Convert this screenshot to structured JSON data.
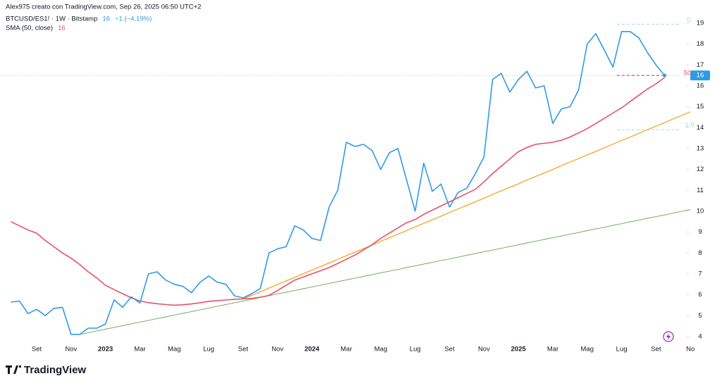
{
  "chart_data": {
    "type": "line",
    "header": "Alex975 creato con TradingView.com, Sep 26, 2025 06:50 UTC+2",
    "brand": "TradingView",
    "price_tag": "16",
    "sma_label": "50",
    "categories": [
      null,
      null,
      null,
      "Set",
      null,
      null,
      null,
      "Nov",
      null,
      null,
      null,
      "2023",
      null,
      null,
      null,
      "Mar",
      null,
      null,
      null,
      "Mag",
      null,
      null,
      null,
      "Lug",
      null,
      null,
      null,
      "Set",
      null,
      null,
      null,
      "Nov",
      null,
      null,
      null,
      "2024",
      null,
      null,
      null,
      "Mar",
      null,
      null,
      null,
      "Mag",
      null,
      null,
      null,
      "Lug",
      null,
      null,
      null,
      "Set",
      null,
      null,
      null,
      "Nov",
      null,
      null,
      null,
      "2025",
      null,
      null,
      null,
      "Mar",
      null,
      null,
      null,
      "Mag",
      null,
      null,
      null,
      "Lug",
      null,
      null,
      null,
      "Set",
      null,
      null,
      null,
      "No"
    ],
    "series": [
      {
        "name": "BTCUSD/ES1! · 1W · Bitstamp",
        "legend_value": "16",
        "legend_change": "−1 (−4,19%)",
        "color": "#2f9be6",
        "width": 1.6,
        "values": [
          5.65,
          5.7,
          5.1,
          5.3,
          5.0,
          5.35,
          5.4,
          4.1,
          4.1,
          4.4,
          4.4,
          4.6,
          5.75,
          5.4,
          5.9,
          5.6,
          7.0,
          7.1,
          6.7,
          6.5,
          6.4,
          6.1,
          6.6,
          6.9,
          6.6,
          6.5,
          5.95,
          5.85,
          6.05,
          6.3,
          8.0,
          8.2,
          8.3,
          9.3,
          9.1,
          8.7,
          8.6,
          10.2,
          11.0,
          13.3,
          13.1,
          13.2,
          12.9,
          12.0,
          12.8,
          13.0,
          11.5,
          10.0,
          12.3,
          10.95,
          11.3,
          10.2,
          10.9,
          11.1,
          11.8,
          12.6,
          16.3,
          16.6,
          15.7,
          16.3,
          16.7,
          15.9,
          16.0,
          14.2,
          14.9,
          15.0,
          15.8,
          18.0,
          18.5,
          17.7,
          16.9,
          18.6,
          18.6,
          18.3,
          17.6,
          17.0,
          16.5,
          null,
          null,
          null
        ]
      },
      {
        "name": "SMA (50, close)",
        "legend_value": "16",
        "color": "#e8516b",
        "width": 1.6,
        "values": [
          9.5,
          9.3,
          9.1,
          8.95,
          8.6,
          8.3,
          8.0,
          7.75,
          7.45,
          7.1,
          6.8,
          6.45,
          6.25,
          6.05,
          5.85,
          5.7,
          5.62,
          5.57,
          5.53,
          5.5,
          5.52,
          5.56,
          5.62,
          5.68,
          5.72,
          5.75,
          5.78,
          5.8,
          5.82,
          5.88,
          5.97,
          6.2,
          6.45,
          6.7,
          6.85,
          7.0,
          7.15,
          7.3,
          7.5,
          7.7,
          7.9,
          8.15,
          8.4,
          8.7,
          8.95,
          9.2,
          9.45,
          9.6,
          9.85,
          10.05,
          10.25,
          10.45,
          10.65,
          10.85,
          11.05,
          11.4,
          11.8,
          12.15,
          12.5,
          12.85,
          13.05,
          13.2,
          13.25,
          13.3,
          13.4,
          13.55,
          13.75,
          13.95,
          14.2,
          14.45,
          14.7,
          14.95,
          15.25,
          15.55,
          15.85,
          16.1,
          16.4,
          null,
          null,
          null
        ]
      },
      {
        "color": "#f5a623",
        "width": 1.3,
        "values": [
          null,
          null,
          null,
          null,
          null,
          null,
          null,
          null,
          null,
          null,
          null,
          null,
          null,
          null,
          null,
          null,
          null,
          null,
          null,
          null,
          null,
          null,
          null,
          null,
          null,
          null,
          null,
          5.8,
          5.97,
          6.14,
          6.32,
          6.49,
          6.66,
          6.83,
          7.01,
          7.18,
          7.35,
          7.52,
          7.7,
          7.87,
          8.04,
          8.21,
          8.38,
          8.56,
          8.73,
          8.9,
          9.07,
          9.25,
          9.42,
          9.59,
          9.76,
          9.94,
          10.11,
          10.28,
          10.45,
          10.62,
          10.8,
          10.97,
          11.14,
          11.31,
          11.49,
          11.66,
          11.83,
          12.0,
          12.18,
          12.35,
          12.52,
          12.69,
          12.86,
          13.04,
          13.21,
          13.38,
          13.55,
          13.73,
          13.9,
          14.07,
          14.24,
          14.42,
          14.59,
          14.76
        ]
      },
      {
        "color": "#6aa84f",
        "width": 0.9,
        "values": [
          null,
          null,
          null,
          null,
          null,
          null,
          null,
          null,
          4.1,
          4.18,
          4.27,
          4.35,
          4.44,
          4.52,
          4.61,
          4.69,
          4.77,
          4.86,
          4.94,
          5.03,
          5.11,
          5.19,
          5.28,
          5.36,
          5.45,
          5.53,
          5.62,
          5.7,
          5.78,
          5.87,
          5.95,
          6.04,
          6.12,
          6.2,
          6.29,
          6.37,
          6.46,
          6.54,
          6.63,
          6.71,
          6.79,
          6.88,
          6.96,
          7.05,
          7.13,
          7.21,
          7.3,
          7.38,
          7.47,
          7.55,
          7.64,
          7.72,
          7.8,
          7.89,
          7.97,
          8.06,
          8.14,
          8.22,
          8.31,
          8.39,
          8.48,
          8.56,
          8.65,
          8.73,
          8.81,
          8.9,
          8.98,
          9.07,
          9.15,
          9.23,
          9.32,
          9.4,
          9.49,
          9.57,
          9.66,
          9.74,
          9.82,
          9.91,
          9.99,
          10.08
        ]
      }
    ],
    "levels": [
      {
        "value": 18.95,
        "label": "0,",
        "color": "#9fdcd2"
      },
      {
        "value": 13.9,
        "label": "1.0",
        "color": "#9fdcd2"
      }
    ],
    "ylim": [
      3.66,
      20.11
    ],
    "yticks": [
      4,
      5,
      6,
      7,
      8,
      9,
      10,
      11,
      12,
      13,
      14,
      15,
      16,
      17,
      18,
      19
    ],
    "grid": false
  }
}
